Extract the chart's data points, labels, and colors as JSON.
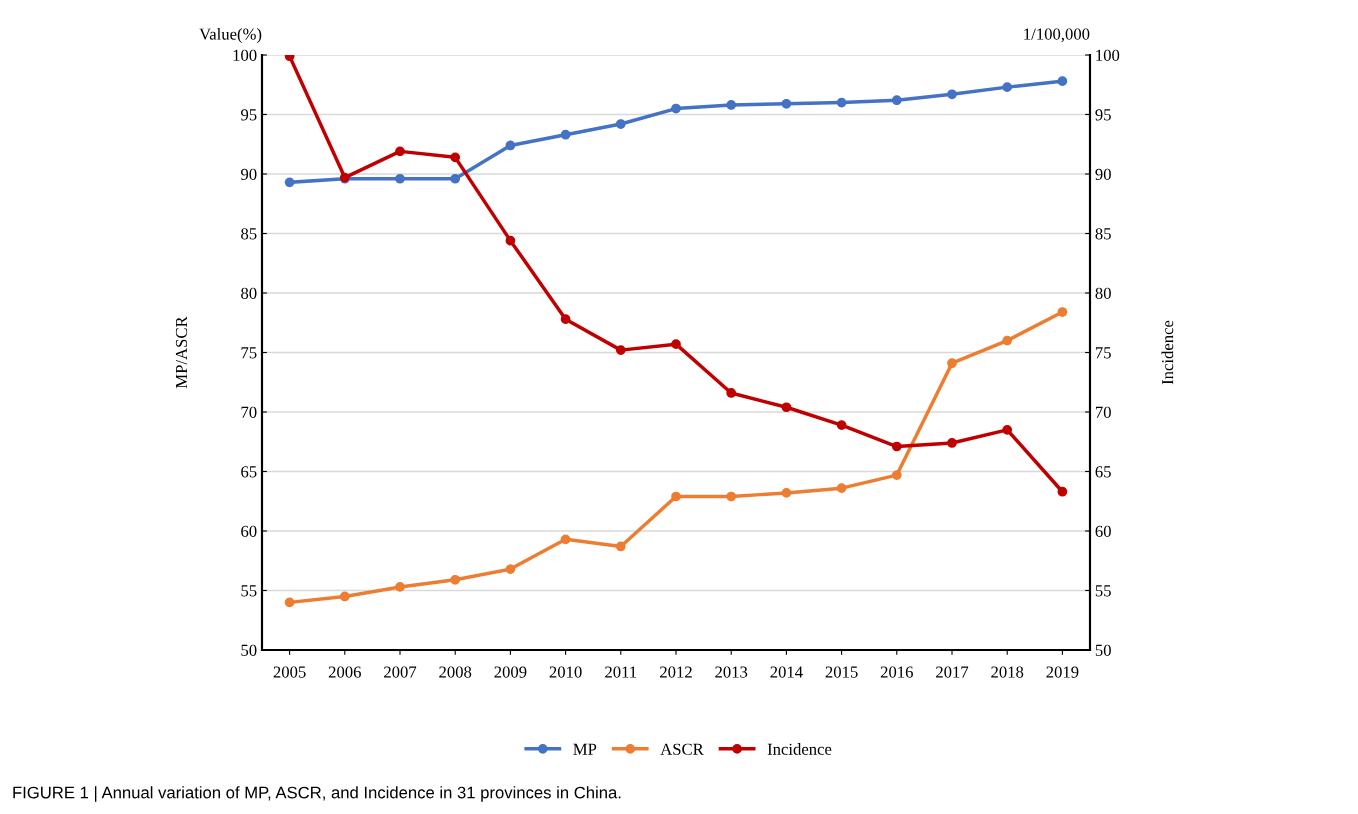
{
  "chart_data": {
    "type": "line",
    "ylabel": "MP/ASCR",
    "y2label": "Incidence",
    "categories": [
      "2005",
      "2006",
      "2007",
      "2008",
      "2009",
      "2010",
      "2011",
      "2012",
      "2013",
      "2014",
      "2015",
      "2016",
      "2017",
      "2018",
      "2019"
    ],
    "series": [
      {
        "name": "MP",
        "color": "#4472c4",
        "values": [
          89.3,
          89.6,
          89.6,
          89.6,
          92.4,
          93.3,
          94.2,
          95.5,
          95.8,
          95.9,
          96.0,
          96.2,
          96.7,
          97.3,
          97.8
        ]
      },
      {
        "name": "ASCR",
        "color": "#ed7d31",
        "values": [
          54.0,
          54.5,
          55.3,
          55.9,
          56.8,
          59.3,
          58.7,
          62.9,
          62.9,
          63.2,
          63.6,
          64.7,
          74.1,
          76.0,
          78.4
        ]
      },
      {
        "name": "Incidence",
        "color": "#c00000",
        "axis": "y2",
        "values": [
          99.9,
          89.7,
          91.9,
          91.4,
          84.4,
          77.8,
          75.2,
          75.7,
          71.6,
          70.4,
          68.9,
          67.1,
          67.4,
          68.5,
          63.3
        ]
      }
    ],
    "ylim": [
      50,
      100
    ],
    "yticks": [
      50,
      55,
      60,
      65,
      70,
      75,
      80,
      85,
      90,
      95,
      100
    ],
    "y2lim": [
      50,
      100
    ],
    "y2ticks": [
      50,
      55,
      60,
      65,
      70,
      75,
      80,
      85,
      90,
      95,
      100
    ],
    "grid": "y",
    "legend": "bottom",
    "marker": "circle",
    "line_style": "solid",
    "annotations": [
      "Value(%)",
      "1/100,000",
      "FIGURE 1 | Annual variation of MP, ASCR, and Incidence in 31 provinces in China."
    ]
  }
}
